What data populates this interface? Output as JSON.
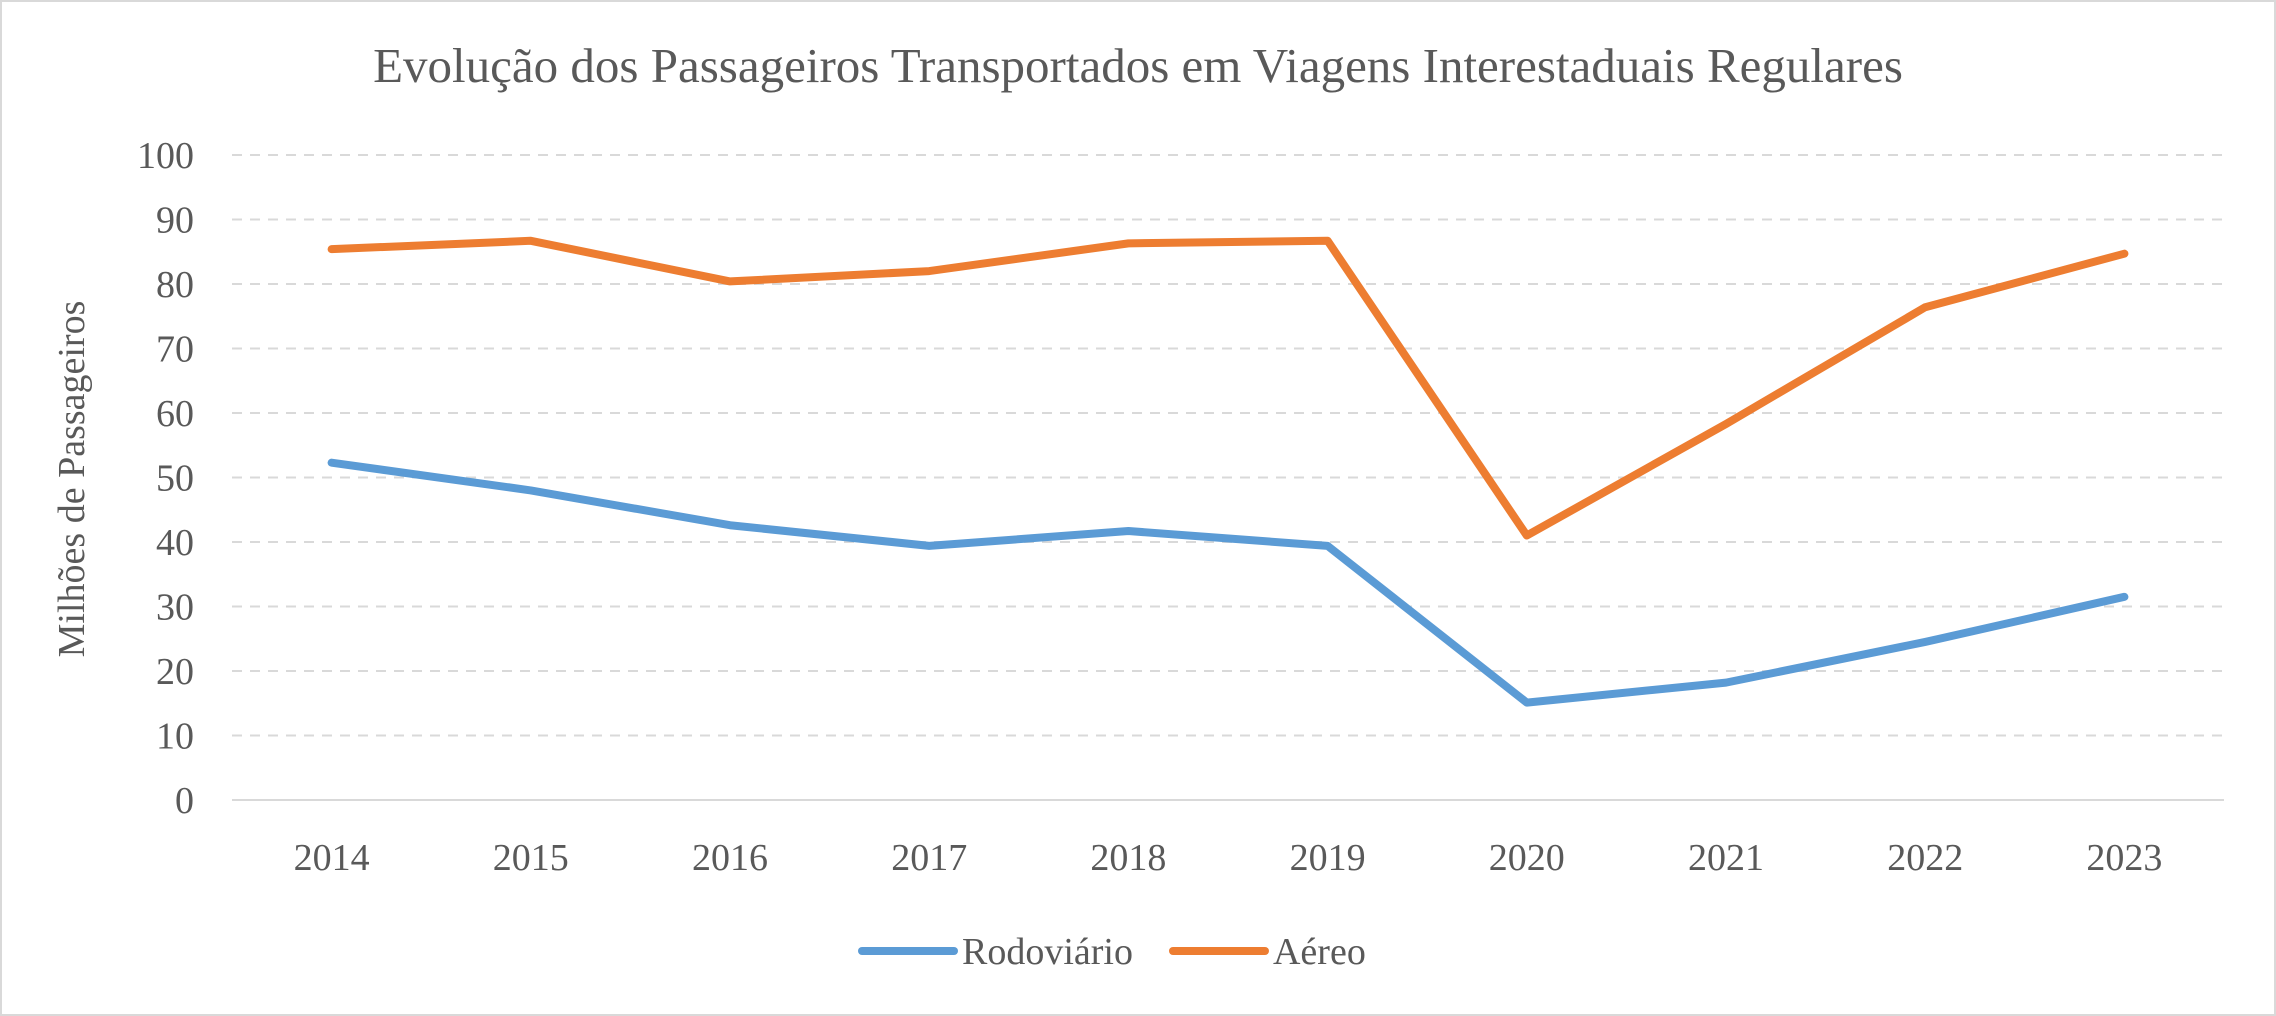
{
  "chart_data": {
    "type": "line",
    "title": "Evolução dos Passageiros Transportados em Viagens Interestaduais Regulares",
    "xlabel": "",
    "ylabel": "Milhões de Passageiros",
    "categories": [
      "2014",
      "2015",
      "2016",
      "2017",
      "2018",
      "2019",
      "2020",
      "2021",
      "2022",
      "2023"
    ],
    "ylim": [
      0,
      100
    ],
    "yticks": [
      0,
      10,
      20,
      30,
      40,
      50,
      60,
      70,
      80,
      90,
      100
    ],
    "grid": true,
    "legend_position": "bottom",
    "series": [
      {
        "name": "Rodoviário",
        "color": "#5B9BD5",
        "values": [
          52.3,
          48.0,
          42.6,
          39.4,
          41.7,
          39.4,
          15.1,
          18.2,
          24.5,
          31.5
        ]
      },
      {
        "name": "Aéreo",
        "color": "#ED7D31",
        "values": [
          85.4,
          86.7,
          80.4,
          82.0,
          86.3,
          86.7,
          41.0,
          58.3,
          76.4,
          84.7
        ]
      }
    ]
  }
}
